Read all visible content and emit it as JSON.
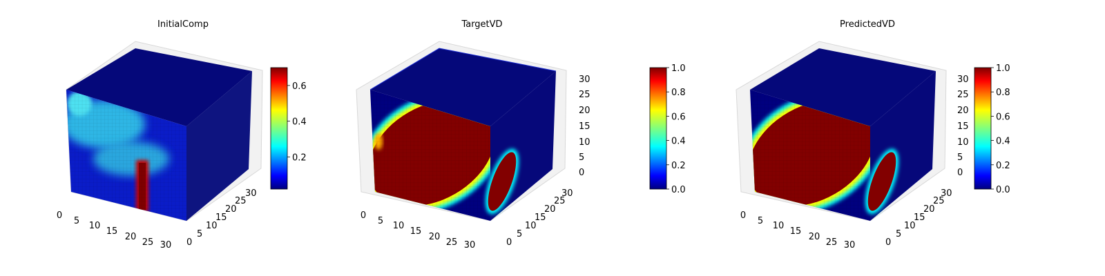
{
  "chart_data": [
    {
      "type": "voxel-3d",
      "title": "InitialComp",
      "axis_x_ticks": [
        "0",
        "5",
        "10",
        "15",
        "20",
        "25",
        "30"
      ],
      "axis_y_ticks": [
        "0",
        "5",
        "10",
        "15",
        "20",
        "25",
        "30"
      ],
      "axis_z_ticks": [],
      "grid_shape": [
        32,
        32,
        32
      ],
      "value_range": [
        0.0,
        0.7
      ],
      "colormap": "jet",
      "colorbar": {
        "ticks": [
          "0.2",
          "0.4",
          "0.6"
        ],
        "tick_values": [
          0.2,
          0.4,
          0.6
        ],
        "range": [
          0.02,
          0.7
        ]
      },
      "description_of_pattern": "low-valued (0.1-0.3) diffuse blobs on front face, high-valued (0.6-0.7) vertical stripe near x=25"
    },
    {
      "type": "voxel-3d",
      "title": "TargetVD",
      "axis_x_ticks": [
        "0",
        "5",
        "10",
        "15",
        "20",
        "25",
        "30"
      ],
      "axis_y_ticks": [
        "0",
        "5",
        "10",
        "15",
        "20",
        "25",
        "30"
      ],
      "axis_z_ticks": [
        "0",
        "5",
        "10",
        "15",
        "20",
        "25",
        "30"
      ],
      "grid_shape": [
        32,
        32,
        32
      ],
      "value_range": [
        0.0,
        1.0
      ],
      "colormap": "jet",
      "colorbar": {
        "ticks": [
          "0.0",
          "0.2",
          "0.4",
          "0.6",
          "0.8",
          "1.0"
        ],
        "tick_values": [
          0.0,
          0.2,
          0.4,
          0.6,
          0.8,
          1.0
        ],
        "range": [
          0.0,
          1.0
        ]
      },
      "description_of_pattern": "large elliptical region of value 1.0 on front face with blue/cyan border, background 0.0"
    },
    {
      "type": "voxel-3d",
      "title": "PredictedVD",
      "axis_x_ticks": [
        "0",
        "5",
        "10",
        "15",
        "20",
        "25",
        "30"
      ],
      "axis_y_ticks": [
        "0",
        "5",
        "10",
        "15",
        "20",
        "25",
        "30"
      ],
      "axis_z_ticks": [
        "0",
        "5",
        "10",
        "15",
        "20",
        "25",
        "30"
      ],
      "grid_shape": [
        32,
        32,
        32
      ],
      "value_range": [
        0.0,
        1.0
      ],
      "colormap": "jet",
      "colorbar": {
        "ticks": [
          "0.0",
          "0.2",
          "0.4",
          "0.6",
          "0.8",
          "1.0"
        ],
        "tick_values": [
          0.0,
          0.2,
          0.4,
          0.6,
          0.8,
          1.0
        ],
        "range": [
          0.0,
          1.0
        ]
      },
      "description_of_pattern": "large elliptical region of value 1.0 on front face with blue/cyan border, background 0.0"
    }
  ]
}
